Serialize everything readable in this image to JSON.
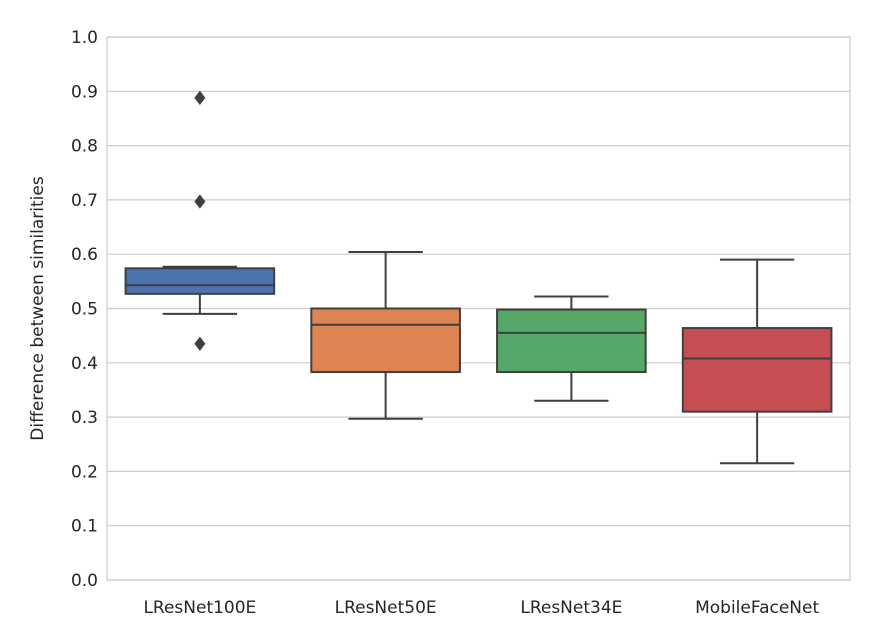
{
  "chart_data": {
    "type": "box",
    "xlabel": "",
    "ylabel": "Difference between similarities",
    "ylim": [
      0.0,
      1.0
    ],
    "yticks": [
      "0.0",
      "0.1",
      "0.2",
      "0.3",
      "0.4",
      "0.5",
      "0.6",
      "0.7",
      "0.8",
      "0.9",
      "1.0"
    ],
    "grid": "horizontal",
    "categories": [
      "LResNet100E",
      "LResNet50E",
      "LResNet34E",
      "MobileFaceNet"
    ],
    "boxes": [
      {
        "category": "LResNet100E",
        "whisker_low": 0.49,
        "q1": 0.527,
        "median": 0.543,
        "q3": 0.574,
        "whisker_high": 0.577,
        "outliers": [
          0.888,
          0.697,
          0.435
        ],
        "color": "#4c72b0"
      },
      {
        "category": "LResNet50E",
        "whisker_low": 0.297,
        "q1": 0.383,
        "median": 0.47,
        "q3": 0.5,
        "whisker_high": 0.604,
        "outliers": [],
        "color": "#dd8452"
      },
      {
        "category": "LResNet34E",
        "whisker_low": 0.33,
        "q1": 0.383,
        "median": 0.455,
        "q3": 0.498,
        "whisker_high": 0.522,
        "outliers": [],
        "color": "#55a868"
      },
      {
        "category": "MobileFaceNet",
        "whisker_low": 0.215,
        "q1": 0.31,
        "median": 0.408,
        "q3": 0.464,
        "whisker_high": 0.59,
        "outliers": [],
        "color": "#c44e52"
      }
    ]
  }
}
